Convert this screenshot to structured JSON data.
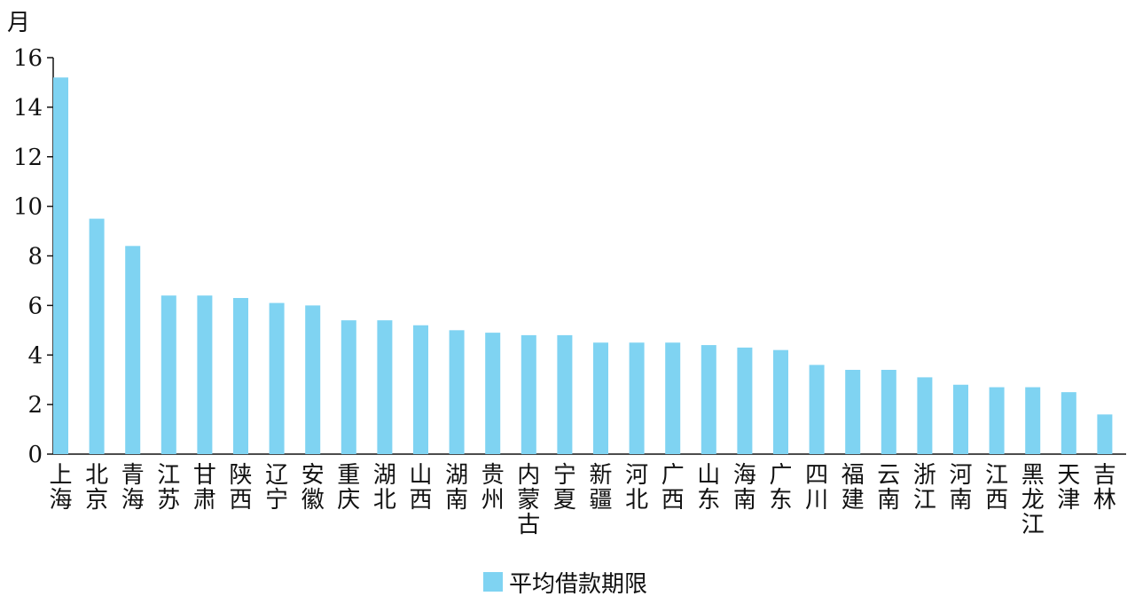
{
  "chart_data": {
    "type": "bar",
    "y_label": "月",
    "categories": [
      "上海",
      "北京",
      "青海",
      "江苏",
      "甘肃",
      "陕西",
      "辽宁",
      "安徽",
      "重庆",
      "湖北",
      "山西",
      "湖南",
      "贵州",
      "内蒙古",
      "宁夏",
      "新疆",
      "河北",
      "广西",
      "山东",
      "海南",
      "广东",
      "四川",
      "福建",
      "云南",
      "浙江",
      "河南",
      "江西",
      "黑龙江",
      "天津",
      "吉林"
    ],
    "series": [
      {
        "name": "平均借款期限",
        "color": "#7fd3f2",
        "values": [
          15.2,
          9.5,
          8.4,
          6.4,
          6.4,
          6.3,
          6.1,
          6.0,
          5.4,
          5.4,
          5.2,
          5.0,
          4.9,
          4.8,
          4.8,
          4.5,
          4.5,
          4.5,
          4.4,
          4.3,
          4.2,
          3.6,
          3.4,
          3.4,
          3.1,
          2.8,
          2.7,
          2.7,
          2.5,
          1.6
        ]
      }
    ],
    "ylim": [
      0,
      16
    ],
    "yticks": [
      0,
      2,
      4,
      6,
      8,
      10,
      12,
      14,
      16
    ],
    "grid": false
  }
}
